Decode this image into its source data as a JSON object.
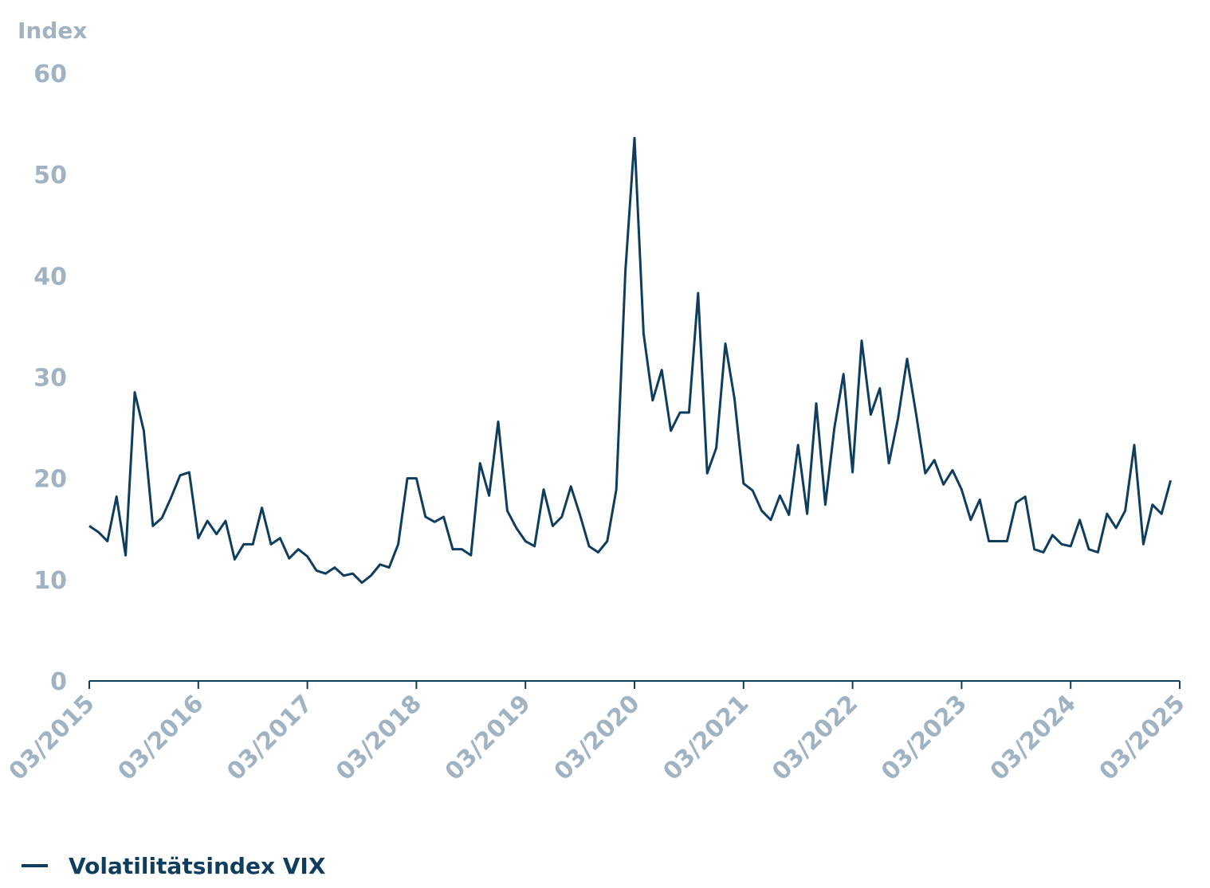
{
  "chart_data": {
    "type": "line",
    "y_axis_label": "Index",
    "x": [
      "03/2015",
      "04/2015",
      "05/2015",
      "06/2015",
      "07/2015",
      "08/2015",
      "09/2015",
      "10/2015",
      "11/2015",
      "12/2015",
      "01/2016",
      "02/2016",
      "03/2016",
      "04/2016",
      "05/2016",
      "06/2016",
      "07/2016",
      "08/2016",
      "09/2016",
      "10/2016",
      "11/2016",
      "12/2016",
      "01/2017",
      "02/2017",
      "03/2017",
      "04/2017",
      "05/2017",
      "06/2017",
      "07/2017",
      "08/2017",
      "09/2017",
      "10/2017",
      "11/2017",
      "12/2017",
      "01/2018",
      "02/2018",
      "03/2018",
      "04/2018",
      "05/2018",
      "06/2018",
      "07/2018",
      "08/2018",
      "09/2018",
      "10/2018",
      "11/2018",
      "12/2018",
      "01/2019",
      "02/2019",
      "03/2019",
      "04/2019",
      "05/2019",
      "06/2019",
      "07/2019",
      "08/2019",
      "09/2019",
      "10/2019",
      "11/2019",
      "12/2019",
      "01/2020",
      "02/2020",
      "03/2020",
      "04/2020",
      "05/2020",
      "06/2020",
      "07/2020",
      "08/2020",
      "09/2020",
      "10/2020",
      "11/2020",
      "12/2020",
      "01/2021",
      "02/2021",
      "03/2021",
      "04/2021",
      "05/2021",
      "06/2021",
      "07/2021",
      "08/2021",
      "09/2021",
      "10/2021",
      "11/2021",
      "12/2021",
      "01/2022",
      "02/2022",
      "03/2022",
      "04/2022",
      "05/2022",
      "06/2022",
      "07/2022",
      "08/2022",
      "09/2022",
      "10/2022",
      "11/2022",
      "12/2022",
      "01/2023",
      "02/2023",
      "03/2023",
      "04/2023",
      "05/2023",
      "06/2023",
      "07/2023",
      "08/2023",
      "09/2023",
      "10/2023",
      "11/2023",
      "12/2023",
      "01/2024",
      "02/2024",
      "03/2024",
      "04/2024",
      "05/2024",
      "06/2024",
      "07/2024",
      "08/2024",
      "09/2024",
      "10/2024",
      "11/2024",
      "12/2024",
      "01/2025",
      "02/2025"
    ],
    "series": [
      {
        "name": "Volatilitätsindex VIX",
        "color": "#0e3d5e",
        "values": [
          15.3,
          14.7,
          13.8,
          18.2,
          12.4,
          28.5,
          24.7,
          15.3,
          16.1,
          18.1,
          20.3,
          20.6,
          14.1,
          15.8,
          14.5,
          15.8,
          12.0,
          13.5,
          13.5,
          17.1,
          13.5,
          14.1,
          12.1,
          13.0,
          12.3,
          10.9,
          10.6,
          11.2,
          10.4,
          10.6,
          9.7,
          10.4,
          11.5,
          11.2,
          13.5,
          20.0,
          20.0,
          16.2,
          15.7,
          16.2,
          13.0,
          13.0,
          12.4,
          21.5,
          18.3,
          25.6,
          16.8,
          15.1,
          13.8,
          13.3,
          18.9,
          15.3,
          16.2,
          19.2,
          16.4,
          13.3,
          12.7,
          13.8,
          18.9,
          40.5,
          53.6,
          34.3,
          27.7,
          30.7,
          24.7,
          26.5,
          26.5,
          38.3,
          20.5,
          23.0,
          33.3,
          27.9,
          19.5,
          18.8,
          16.8,
          15.9,
          18.3,
          16.4,
          23.3,
          16.5,
          27.4,
          17.4,
          25.0,
          30.3,
          20.6,
          33.6,
          26.3,
          28.9,
          21.5,
          25.9,
          31.8,
          26.3,
          20.5,
          21.8,
          19.4,
          20.8,
          18.9,
          15.9,
          17.9,
          13.8,
          13.8,
          13.8,
          17.6,
          18.2,
          13.0,
          12.7,
          14.4,
          13.5,
          13.3,
          15.9,
          13.0,
          12.7,
          16.5,
          15.1,
          16.8,
          23.3,
          13.5,
          17.4,
          16.5,
          19.8
        ]
      }
    ],
    "xlim": [
      "03/2015",
      "03/2025"
    ],
    "xticks": [
      "03/2015",
      "03/2016",
      "03/2017",
      "03/2018",
      "03/2019",
      "03/2020",
      "03/2021",
      "03/2022",
      "03/2023",
      "03/2024",
      "03/2025"
    ],
    "ylim": [
      0,
      60
    ],
    "yticks": [
      0,
      10,
      20,
      30,
      40,
      50,
      60
    ],
    "grid": false
  }
}
